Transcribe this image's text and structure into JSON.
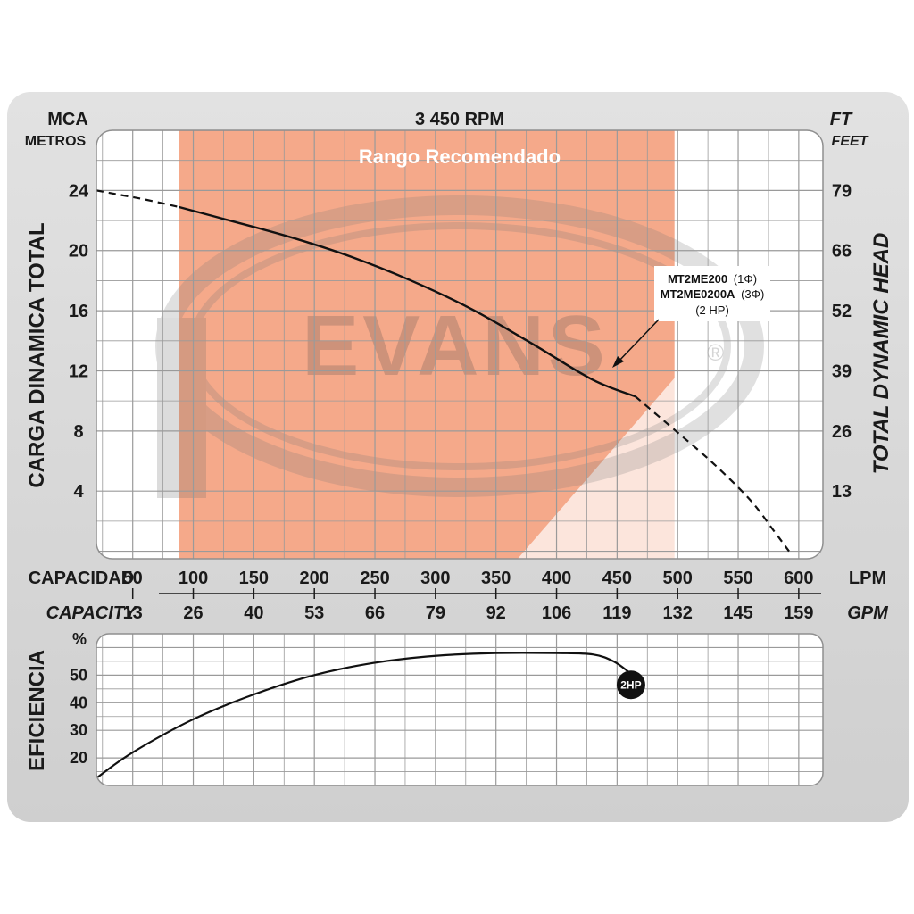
{
  "header": {
    "left_unit_top": "MCA",
    "left_unit_bottom": "METROS",
    "speed": "3 450 RPM",
    "right_unit_top": "FT",
    "right_unit_bottom": "FEET"
  },
  "axis_titles": {
    "left": "CARGA  DINAMICA  TOTAL",
    "right": "TOTAL  DYNAMIC  HEAD",
    "x_top": "CAPACIDAD",
    "x_bottom": "CAPACITY",
    "x_top_unit": "LPM",
    "x_bottom_unit": "GPM",
    "eff": "EFICIENCIA",
    "eff_unit": "%"
  },
  "recommended_range_label": "Rango Recomendado",
  "callout": {
    "line1_model": "MT2ME200",
    "line1_phase": "(1Φ)",
    "line2_model": "MT2ME0200A",
    "line2_phase": "(3Φ)",
    "line3": "(2 HP)"
  },
  "watermark": {
    "text": "EVANS",
    "mark": "®"
  },
  "end_badge": "2HP",
  "colors": {
    "frame": "#dadada",
    "plot_bg": "#ffffff",
    "grid": "#9a9a9a",
    "recommended": "#f5a98a",
    "curve": "#111111"
  },
  "chart_data": [
    {
      "type": "line",
      "title": "3 450 RPM",
      "xlabel": "CAPACIDAD",
      "ylabel": "CARGA  DINAMICA  TOTAL",
      "x_unit": "LPM",
      "y_unit": "MCA",
      "xlim": [
        20,
        620
      ],
      "ylim": [
        -0.5,
        28
      ],
      "x_ticks": [
        50,
        100,
        150,
        200,
        250,
        300,
        350,
        400,
        450,
        500,
        550,
        600
      ],
      "x_ticks_gpm": [
        13,
        26,
        40,
        53,
        66,
        79,
        92,
        106,
        119,
        132,
        145,
        159
      ],
      "y_ticks": [
        4,
        8,
        12,
        16,
        20,
        24
      ],
      "y_ticks_ft": [
        13,
        26,
        39,
        52,
        66,
        79
      ],
      "recommended_range_lpm": [
        88,
        350
      ],
      "grid": true,
      "series": [
        {
          "name": "MT2ME200 (1Φ) MT2ME0200A (3Φ) (2 HP)",
          "x": [
            20,
            40,
            60,
            88,
            130,
            180,
            230,
            280,
            330,
            380,
            430,
            465
          ],
          "y": [
            24.0,
            23.7,
            23.4,
            22.9,
            22.0,
            20.9,
            19.6,
            18.0,
            16.1,
            13.8,
            11.4,
            10.3
          ]
        },
        {
          "name": "dashed-left",
          "x": [
            20,
            40,
            60,
            88
          ],
          "y": [
            24.0,
            23.7,
            23.4,
            22.9
          ]
        },
        {
          "name": "dashed-right",
          "x": [
            465,
            500,
            530,
            560,
            580,
            592
          ],
          "y": [
            10.3,
            7.9,
            5.8,
            3.4,
            1.3,
            0
          ]
        }
      ]
    },
    {
      "type": "line",
      "title": "",
      "xlabel": "CAPACITY",
      "ylabel": "EFICIENCIA",
      "y_unit": "%",
      "xlim": [
        20,
        620
      ],
      "ylim": [
        10,
        65
      ],
      "y_ticks": [
        20,
        30,
        40,
        50
      ],
      "grid": true,
      "series": [
        {
          "name": "eficiencia",
          "x": [
            21,
            50,
            100,
            150,
            200,
            250,
            300,
            350,
            400,
            430,
            447,
            460
          ],
          "y": [
            13,
            22,
            34,
            43,
            50,
            54.5,
            57,
            58,
            58,
            57.5,
            55,
            51
          ]
        }
      ]
    }
  ]
}
